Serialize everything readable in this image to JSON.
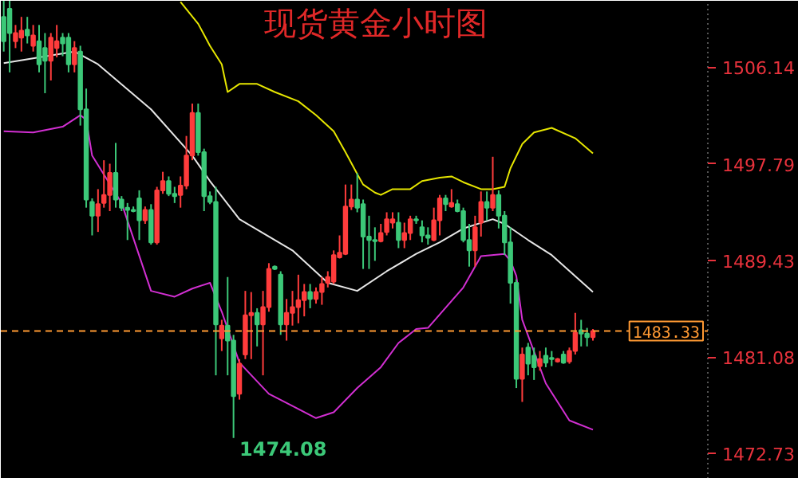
{
  "chart_data": {
    "type": "candlestick",
    "title": "现货黄金小时图",
    "categories": [
      null,
      null,
      null,
      null,
      null,
      null,
      null,
      null,
      null,
      null,
      null,
      null,
      null,
      null,
      null,
      null,
      null,
      null,
      null,
      null,
      null,
      null,
      null,
      null,
      null,
      null,
      null,
      null,
      null,
      null,
      null,
      null,
      null,
      null,
      null,
      null,
      null,
      null,
      null,
      null,
      null,
      null,
      null,
      null,
      null,
      null,
      null,
      null,
      null,
      null,
      null,
      null,
      null,
      null,
      null,
      null,
      null,
      null,
      null,
      null,
      null,
      null,
      null,
      null,
      null,
      null,
      null,
      null,
      null,
      null,
      null,
      null,
      null,
      null,
      null,
      null,
      null,
      null,
      null,
      null,
      null,
      null,
      null,
      null,
      null,
      null,
      null,
      null,
      null,
      null,
      null,
      null,
      null,
      null,
      null,
      null,
      null,
      null,
      null,
      null,
      null,
      null,
      null,
      null,
      null,
      null,
      null,
      null,
      null,
      null,
      null,
      null,
      null,
      null,
      null,
      null,
      null,
      null,
      null,
      null
    ],
    "ohlc": [
      [
        1510.5,
        1511.9,
        1507.5,
        1508.4
      ],
      [
        1511.2,
        1511.9,
        1505.7,
        1509.1
      ],
      [
        1508.4,
        1509.8,
        1507.8,
        1509.1
      ],
      [
        1508.7,
        1510.5,
        1507.5,
        1509.3
      ],
      [
        1509.4,
        1510.5,
        1508.2,
        1508.9
      ],
      [
        1508.0,
        1509.8,
        1507.5,
        1508.9
      ],
      [
        1508.4,
        1509.8,
        1505.7,
        1506.4
      ],
      [
        1507.8,
        1509.1,
        1503.9,
        1506.7
      ],
      [
        1506.7,
        1509.1,
        1505.0,
        1508.7
      ],
      [
        1507.8,
        1509.8,
        1507.0,
        1508.4
      ],
      [
        1508.7,
        1509.1,
        1507.1,
        1508.2
      ],
      [
        1508.7,
        1509.1,
        1505.7,
        1506.4
      ],
      [
        1506.4,
        1508.4,
        1505.7,
        1507.8
      ],
      [
        1507.5,
        1508.0,
        1501.1,
        1502.5
      ],
      [
        1502.5,
        1504.3,
        1494.0,
        1494.7
      ],
      [
        1494.5,
        1494.8,
        1491.6,
        1493.3
      ],
      [
        1493.3,
        1495.6,
        1491.9,
        1494.3
      ],
      [
        1494.4,
        1498.1,
        1494.0,
        1495.1
      ],
      [
        1495.1,
        1497.8,
        1493.7,
        1497.0
      ],
      [
        1497.0,
        1499.6,
        1494.0,
        1494.7
      ],
      [
        1494.7,
        1495.0,
        1493.7,
        1494.0
      ],
      [
        1494.0,
        1494.4,
        1491.2,
        1493.8
      ],
      [
        1493.8,
        1494.1,
        1493.6,
        1493.7
      ],
      [
        1494.8,
        1495.5,
        1491.2,
        1492.9
      ],
      [
        1492.9,
        1494.1,
        1492.6,
        1493.8
      ],
      [
        1493.8,
        1494.3,
        1490.8,
        1491.0
      ],
      [
        1491.0,
        1495.8,
        1490.8,
        1495.5
      ],
      [
        1495.5,
        1497.1,
        1495.2,
        1496.3
      ],
      [
        1496.3,
        1496.7,
        1495.0,
        1495.2
      ],
      [
        1495.2,
        1495.8,
        1494.4,
        1495.0
      ],
      [
        1495.1,
        1496.7,
        1494.0,
        1495.9
      ],
      [
        1495.9,
        1500.2,
        1495.6,
        1498.5
      ],
      [
        1498.5,
        1503.0,
        1498.1,
        1502.2
      ],
      [
        1502.2,
        1503.0,
        1498.5,
        1498.8
      ],
      [
        1498.8,
        1499.1,
        1493.7,
        1495.0
      ],
      [
        1495.0,
        1495.4,
        1494.3,
        1494.5
      ],
      [
        1494.5,
        1495.8,
        1479.5,
        1483.9
      ],
      [
        1482.7,
        1484.3,
        1481.6,
        1483.8
      ],
      [
        1483.8,
        1488.0,
        1479.5,
        1482.5
      ],
      [
        1482.5,
        1483.0,
        1474.08,
        1477.7
      ],
      [
        1477.9,
        1480.9,
        1477.4,
        1480.5
      ],
      [
        1481.3,
        1486.8,
        1480.9,
        1484.7
      ],
      [
        1484.7,
        1486.7,
        1480.9,
        1484.9
      ],
      [
        1484.9,
        1485.3,
        1482.0,
        1483.9
      ],
      [
        1483.9,
        1486.8,
        1479.5,
        1485.4
      ],
      [
        1485.4,
        1489.2,
        1485.0,
        1488.7
      ],
      [
        1488.9,
        1489.0,
        1488.6,
        1488.7
      ],
      [
        1488.2,
        1488.5,
        1483.0,
        1483.9
      ],
      [
        1483.9,
        1486.1,
        1482.5,
        1484.9
      ],
      [
        1484.9,
        1486.8,
        1483.8,
        1485.4
      ],
      [
        1485.4,
        1488.2,
        1484.0,
        1486.0
      ],
      [
        1486.0,
        1487.4,
        1484.6,
        1486.7
      ],
      [
        1486.7,
        1487.4,
        1485.3,
        1486.1
      ],
      [
        1486.1,
        1487.1,
        1485.7,
        1486.7
      ],
      [
        1486.7,
        1488.0,
        1485.6,
        1487.4
      ],
      [
        1487.5,
        1488.5,
        1487.1,
        1488.0
      ],
      [
        1487.6,
        1490.3,
        1487.4,
        1489.9
      ],
      [
        1489.7,
        1491.6,
        1489.6,
        1490.1
      ],
      [
        1490.0,
        1496.0,
        1489.9,
        1494.1
      ],
      [
        1494.1,
        1496.0,
        1493.8,
        1494.7
      ],
      [
        1494.7,
        1497.0,
        1493.6,
        1494.0
      ],
      [
        1494.3,
        1494.7,
        1488.7,
        1491.5
      ],
      [
        1491.5,
        1493.3,
        1488.7,
        1491.2
      ],
      [
        1491.2,
        1492.3,
        1489.4,
        1491.1
      ],
      [
        1491.1,
        1492.6,
        1491.0,
        1491.8
      ],
      [
        1491.9,
        1493.6,
        1491.6,
        1493.0
      ],
      [
        1492.7,
        1493.6,
        1492.2,
        1493.0
      ],
      [
        1492.7,
        1493.6,
        1490.5,
        1491.2
      ],
      [
        1491.2,
        1492.7,
        1490.5,
        1491.8
      ],
      [
        1491.8,
        1493.3,
        1491.2,
        1493.0
      ],
      [
        1493.0,
        1493.3,
        1492.6,
        1492.9
      ],
      [
        1492.3,
        1492.9,
        1491.0,
        1491.6
      ],
      [
        1491.6,
        1492.3,
        1490.8,
        1491.4
      ],
      [
        1491.2,
        1494.0,
        1491.1,
        1492.9
      ],
      [
        1492.9,
        1495.1,
        1491.6,
        1494.8
      ],
      [
        1494.8,
        1495.1,
        1493.7,
        1494.3
      ],
      [
        1494.1,
        1495.6,
        1494.0,
        1494.4
      ],
      [
        1494.3,
        1494.7,
        1493.6,
        1493.7
      ],
      [
        1493.7,
        1494.0,
        1491.0,
        1491.2
      ],
      [
        1491.2,
        1492.6,
        1488.9,
        1490.3
      ],
      [
        1490.3,
        1493.3,
        1488.9,
        1492.3
      ],
      [
        1492.7,
        1495.4,
        1491.5,
        1494.5
      ],
      [
        1494.5,
        1495.4,
        1492.9,
        1494.0
      ],
      [
        1494.0,
        1498.4,
        1493.7,
        1495.1
      ],
      [
        1495.1,
        1495.5,
        1492.2,
        1493.3
      ],
      [
        1493.3,
        1493.7,
        1489.9,
        1491.0
      ],
      [
        1491.0,
        1492.3,
        1485.7,
        1487.5
      ],
      [
        1487.5,
        1487.8,
        1478.4,
        1479.2
      ],
      [
        1479.2,
        1481.9,
        1477.2,
        1481.3
      ],
      [
        1481.9,
        1482.3,
        1479.5,
        1480.5
      ],
      [
        1481.2,
        1481.9,
        1479.1,
        1480.2
      ],
      [
        1480.3,
        1481.6,
        1479.9,
        1480.9
      ],
      [
        1481.2,
        1481.9,
        1480.2,
        1480.6
      ],
      [
        1481.0,
        1481.6,
        1480.3,
        1480.9
      ],
      [
        1480.7,
        1481.0,
        1480.6,
        1480.9
      ],
      [
        1481.3,
        1481.6,
        1480.5,
        1480.6
      ],
      [
        1480.7,
        1481.9,
        1480.5,
        1481.6
      ],
      [
        1481.6,
        1484.9,
        1481.3,
        1483.2
      ],
      [
        1483.4,
        1484.3,
        1482.0,
        1483.1
      ],
      [
        1483.1,
        1483.6,
        1482.0,
        1482.8
      ],
      [
        1482.8,
        1483.5,
        1482.5,
        1483.33
      ],
      null,
      null,
      null,
      null,
      null,
      null,
      null,
      null,
      null,
      null,
      null,
      null,
      null,
      null,
      null,
      null,
      null,
      null,
      null
    ],
    "colors": [
      "#3cc878",
      "#3cc878",
      "#ff3c3c",
      "#ff3c3c",
      "#3cc878",
      "#ff3c3c",
      "#3cc878",
      "#3cc878",
      "#ff3c3c",
      "#ff3c3c",
      "#3cc878",
      "#3cc878",
      "#ff3c3c",
      "#3cc878",
      "#3cc878",
      "#3cc878",
      "#ff3c3c",
      "#ff3c3c",
      "#ff3c3c",
      "#3cc878",
      "#3cc878",
      "#3cc878",
      "#3cc878",
      "#3cc878",
      "#ff3c3c",
      "#3cc878",
      "#ff3c3c",
      "#ff3c3c",
      "#3cc878",
      "#3cc878",
      "#ff3c3c",
      "#ff3c3c",
      "#ff3c3c",
      "#3cc878",
      "#3cc878",
      "#3cc878",
      "#3cc878",
      "#ff3c3c",
      "#3cc878",
      "#3cc878",
      "#ff3c3c",
      "#ff3c3c",
      "#ff3c3c",
      "#3cc878",
      "#ff3c3c",
      "#ff3c3c",
      "#3cc878",
      "#3cc878",
      "#ff3c3c",
      "#ff3c3c",
      "#ff3c3c",
      "#ff3c3c",
      "#3cc878",
      "#ff3c3c",
      "#ff3c3c",
      "#ff3c3c",
      "#ff3c3c",
      "#ff3c3c",
      "#ff3c3c",
      "#ff3c3c",
      "#3cc878",
      "#3cc878",
      "#3cc878",
      "#3cc878",
      "#ff3c3c",
      "#ff3c3c",
      "#ff3c3c",
      "#3cc878",
      "#ff3c3c",
      "#ff3c3c",
      "#3cc878",
      "#3cc878",
      "#3cc878",
      "#ff3c3c",
      "#ff3c3c",
      "#3cc878",
      "#ff3c3c",
      "#3cc878",
      "#3cc878",
      "#3cc878",
      "#ff3c3c",
      "#ff3c3c",
      "#3cc878",
      "#ff3c3c",
      "#3cc878",
      "#3cc878",
      "#3cc878",
      "#3cc878",
      "#ff3c3c",
      "#3cc878",
      "#3cc878",
      "#ff3c3c",
      "#3cc878",
      "#3cc878",
      "#ff3c3c",
      "#3cc878",
      "#ff3c3c",
      "#ff3c3c",
      "#3cc878",
      "#3cc878",
      "#ff3c3c",
      null,
      null,
      null,
      null,
      null,
      null,
      null,
      null,
      null,
      null,
      null,
      null,
      null,
      null,
      null,
      null,
      null,
      null,
      null
    ],
    "series": [
      {
        "type": "line",
        "color": "#e6e600",
        "values": [
          null,
          null,
          null,
          null,
          null,
          null,
          null,
          null,
          null,
          null,
          null,
          null,
          null,
          null,
          null,
          null,
          null,
          null,
          null,
          null,
          null,
          null,
          null,
          null,
          null,
          null,
          null,
          null,
          null,
          null,
          1511.8,
          null,
          null,
          1509.9,
          null,
          1508.0,
          null,
          1506.4,
          1504.0,
          null,
          1504.7,
          null,
          null,
          1504.7,
          null,
          null,
          1504.0,
          null,
          null,
          null,
          1503.2,
          null,
          null,
          1502.0,
          null,
          null,
          1500.6,
          null,
          1498.8,
          null,
          1496.9,
          1496.0,
          null,
          1495.3,
          1495.1,
          null,
          1495.6,
          null,
          null,
          1495.6,
          null,
          1496.3,
          null,
          null,
          1496.6,
          null,
          1496.7,
          null,
          1496.2,
          null,
          null,
          1495.6,
          null,
          1495.6,
          null,
          1495.8,
          1497.4,
          null,
          1499.5,
          null,
          1500.5,
          null,
          null,
          1500.9,
          null,
          null,
          null,
          1500.0,
          null,
          null,
          1498.7,
          null,
          null,
          null,
          null,
          null,
          null,
          null,
          null,
          null,
          null,
          null,
          null,
          null,
          null,
          null,
          null,
          null,
          null,
          null
        ]
      },
      {
        "type": "line",
        "color": "#e6e6e6",
        "values": [
          1506.5,
          null,
          null,
          null,
          null,
          null,
          null,
          null,
          null,
          null,
          null,
          null,
          1507.5,
          null,
          null,
          null,
          1506.4,
          null,
          null,
          null,
          null,
          null,
          null,
          null,
          null,
          1502.5,
          null,
          null,
          null,
          null,
          null,
          null,
          1498.5,
          null,
          null,
          1496.3,
          null,
          null,
          null,
          null,
          1493.0,
          null,
          null,
          null,
          null,
          null,
          null,
          null,
          null,
          1490.3,
          null,
          null,
          null,
          null,
          null,
          1487.5,
          null,
          null,
          null,
          null,
          1486.8,
          null,
          null,
          null,
          null,
          1488.5,
          null,
          null,
          null,
          null,
          1490.0,
          null,
          null,
          null,
          1491.0,
          null,
          null,
          null,
          1492.2,
          null,
          null,
          null,
          null,
          1493.0,
          null,
          1492.6,
          null,
          null,
          null,
          1491.2,
          null,
          null,
          null,
          1489.9,
          null,
          null,
          null,
          null,
          null,
          null,
          1486.7,
          null,
          null,
          null,
          null,
          null,
          null,
          null,
          null,
          null,
          null,
          null,
          null,
          null,
          null,
          null,
          null,
          null,
          null,
          null
        ]
      },
      {
        "type": "line",
        "color": "#d22fd2",
        "values": [
          1500.6,
          null,
          null,
          null,
          null,
          1500.5,
          null,
          null,
          null,
          null,
          1501.0,
          null,
          null,
          1502.0,
          1501.6,
          1498.5,
          null,
          null,
          null,
          null,
          1494.4,
          null,
          null,
          null,
          null,
          1486.8,
          null,
          null,
          null,
          1486.3,
          null,
          null,
          1487.0,
          null,
          null,
          1487.5,
          null,
          1485.0,
          null,
          null,
          1480.6,
          null,
          null,
          null,
          null,
          1477.9,
          null,
          null,
          null,
          null,
          null,
          null,
          null,
          1475.8,
          null,
          null,
          1476.3,
          null,
          null,
          null,
          1478.4,
          null,
          null,
          null,
          1480.2,
          null,
          null,
          1482.3,
          null,
          null,
          1483.5,
          null,
          1483.6,
          null,
          null,
          null,
          null,
          null,
          1487.1,
          null,
          null,
          1489.8,
          null,
          null,
          null,
          1490.0,
          1489.4,
          1488.1,
          1484.3,
          null,
          null,
          null,
          1478.8,
          null,
          null,
          null,
          1475.6,
          null,
          null,
          null,
          1474.8,
          null,
          null,
          null,
          null,
          null,
          null,
          null,
          null,
          null,
          null,
          null,
          null,
          null,
          null,
          null,
          null,
          null,
          null,
          null
        ]
      }
    ],
    "ylim": [
      1470.55,
      1511.89
    ],
    "yticks": [
      1506.14,
      1497.79,
      1489.43,
      1481.08,
      1472.73
    ],
    "tick_labels": "y",
    "ref_lines": [
      {
        "axis": "y",
        "value": 1483.33,
        "label": "1483.33",
        "color": "#ff9933",
        "line_style": "dashed"
      }
    ],
    "annotations": [
      "1474.08"
    ]
  }
}
